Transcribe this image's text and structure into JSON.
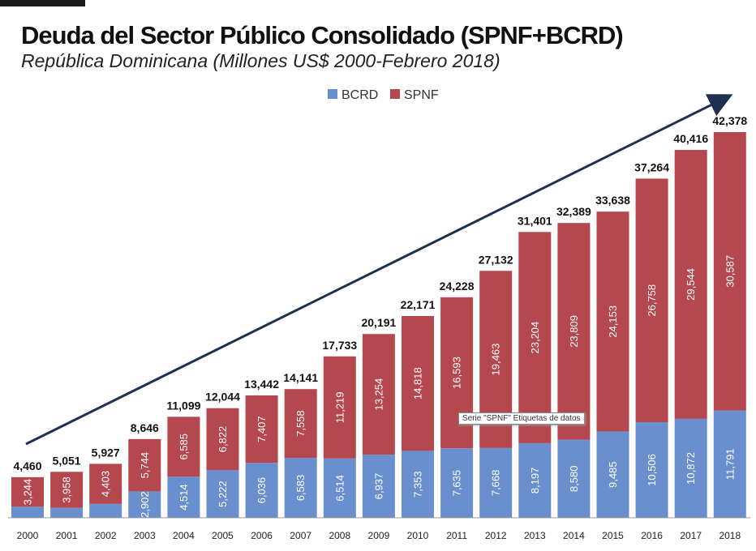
{
  "chart_data": {
    "type": "bar",
    "stacked": true,
    "title": "Deuda del Sector Público Consolidado (SPNF+BCRD)",
    "subtitle": "República Dominicana (Millones US$ 2000-Febrero 2018)",
    "legend": {
      "placement": "top-center",
      "entries": [
        "BCRD",
        "SPNF"
      ]
    },
    "categories": [
      "2000",
      "2001",
      "2002",
      "2003",
      "2004",
      "2005",
      "2006",
      "2007",
      "2008",
      "2009",
      "2010",
      "2011",
      "2012",
      "2013",
      "2014",
      "2015",
      "2016",
      "2017",
      "2018"
    ],
    "series": [
      {
        "name": "BCRD",
        "color": "#6a8fcf",
        "values": [
          1216,
          1093,
          1524,
          2902,
          4514,
          5222,
          6036,
          6583,
          6514,
          6937,
          7353,
          7635,
          7668,
          8197,
          8580,
          9485,
          10506,
          10872,
          11791
        ],
        "labels_shown": [
          false,
          false,
          false,
          true,
          true,
          true,
          true,
          true,
          true,
          true,
          true,
          true,
          true,
          true,
          true,
          true,
          true,
          true,
          true
        ]
      },
      {
        "name": "SPNF",
        "color": "#b5484e",
        "values": [
          3244,
          3958,
          4403,
          5744,
          6585,
          6822,
          7407,
          7558,
          11219,
          13254,
          14818,
          16593,
          19463,
          23204,
          23809,
          24153,
          26758,
          29544,
          30587
        ]
      }
    ],
    "totals": [
      4460,
      5051,
      5927,
      8646,
      11099,
      12044,
      13442,
      14141,
      17733,
      20191,
      22171,
      24228,
      27132,
      31401,
      32389,
      33638,
      37264,
      40416,
      42378
    ],
    "ylim": [
      0,
      42378
    ],
    "grid": false,
    "tooltip": "Serie \"SPNF\" Etiquetas de datos"
  }
}
